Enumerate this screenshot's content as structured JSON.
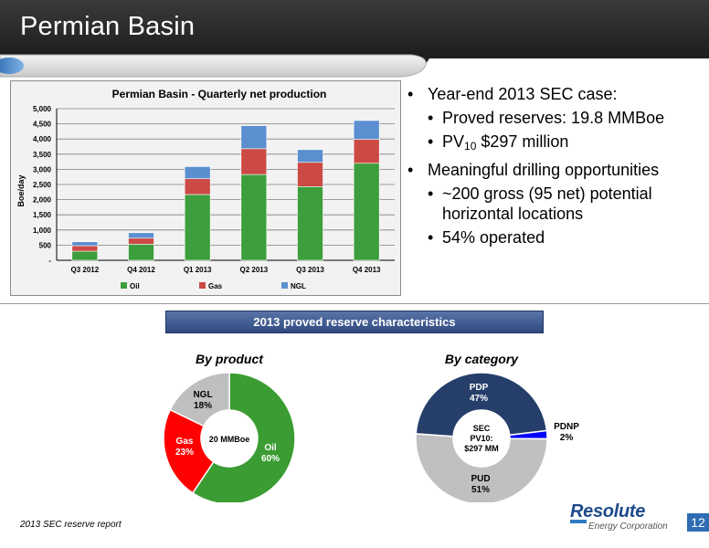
{
  "slide": {
    "title": "Permian Basin",
    "footnote": "2013 SEC reserve report",
    "page_number": "12"
  },
  "bullets": {
    "b1": "Year-end 2013 SEC case:",
    "b1_1": "Proved reserves:  19.8 MMBoe",
    "b1_2_pre": "PV",
    "b1_2_sub": "10",
    "b1_2_post": " $297 million",
    "b2": "Meaningful drilling opportunities",
    "b2_1": "~200 gross (95 net) potential horizontal locations",
    "b2_2": "54% operated"
  },
  "banner": "2013 proved reserve characteristics",
  "logo": {
    "name": "Resolute",
    "tagline": "Energy Corporation"
  },
  "colors": {
    "oil": "#3c9e3c",
    "gas": "#cc4a44",
    "ngl": "#5b8fd0",
    "pie_oil": "#3a9c32",
    "pie_gas": "#ff0000",
    "pie_ngl": "#bfbfbf",
    "pdp": "#263f6a",
    "pdnp": "#0000ff",
    "pud": "#c0c0c0"
  },
  "chart_data": [
    {
      "type": "bar",
      "stacked": true,
      "title": "Permian Basin - Quarterly net production",
      "xlabel": "",
      "ylabel": "Boe/day",
      "ylim": [
        0,
        5000
      ],
      "yticks": [
        "-",
        "500",
        "1,000",
        "1,500",
        "2,000",
        "2,500",
        "3,000",
        "3,500",
        "4,000",
        "4,500",
        "5,000"
      ],
      "categories": [
        "Q3 2012",
        "Q4 2012",
        "Q1 2013",
        "Q2 2013",
        "Q3 2013",
        "Q4 2013"
      ],
      "series": [
        {
          "name": "Oil",
          "values": [
            300,
            530,
            2170,
            2830,
            2430,
            3200
          ]
        },
        {
          "name": "Gas",
          "values": [
            180,
            200,
            520,
            850,
            800,
            790
          ]
        },
        {
          "name": "NGL",
          "values": [
            130,
            180,
            400,
            760,
            420,
            620
          ]
        }
      ],
      "legend_position": "bottom",
      "grid": true
    },
    {
      "type": "pie",
      "title": "By product",
      "center_label": "20 MMBoe",
      "slices": [
        {
          "label": "Oil",
          "value": 60,
          "text": "60%"
        },
        {
          "label": "Gas",
          "value": 23,
          "text": "23%"
        },
        {
          "label": "NGL",
          "value": 18,
          "text": "18%"
        }
      ]
    },
    {
      "type": "pie",
      "title": "By category",
      "center_label": [
        "SEC",
        "PV10:",
        "$297 MM"
      ],
      "slices": [
        {
          "label": "PDP",
          "value": 47,
          "text": "47%"
        },
        {
          "label": "PDNP",
          "value": 2,
          "text": "2%"
        },
        {
          "label": "PUD",
          "value": 51,
          "text": "51%"
        }
      ]
    }
  ]
}
